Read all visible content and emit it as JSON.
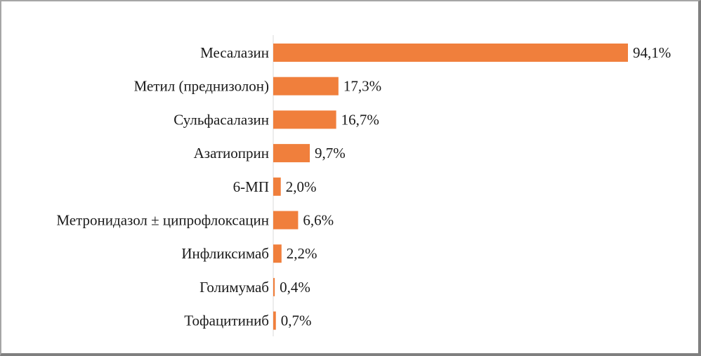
{
  "chart_data": {
    "type": "bar",
    "orientation": "horizontal",
    "title": "",
    "xlabel": "",
    "ylabel": "",
    "xlim": [
      0,
      94.1
    ],
    "grid": false,
    "legend": "none",
    "bar_color": "#f07f3c",
    "axis_color": "#d9d9d9",
    "categories": [
      "Месалазин",
      "Метил (преднизолон)",
      "Сульфасалазин",
      "Азатиоприн",
      "6-МП",
      "Метронидазол ± ципрофлоксацин",
      "Инфликсимаб",
      "Голимумаб",
      "Тофацитиниб"
    ],
    "values": [
      94.1,
      17.3,
      16.7,
      9.7,
      2.0,
      6.6,
      2.2,
      0.4,
      0.7
    ],
    "data_labels": [
      "94,1%",
      "17,3%",
      "16,7%",
      "9,7%",
      "2,0%",
      "6,6%",
      "2,2%",
      "0,4%",
      "0,7%"
    ]
  }
}
